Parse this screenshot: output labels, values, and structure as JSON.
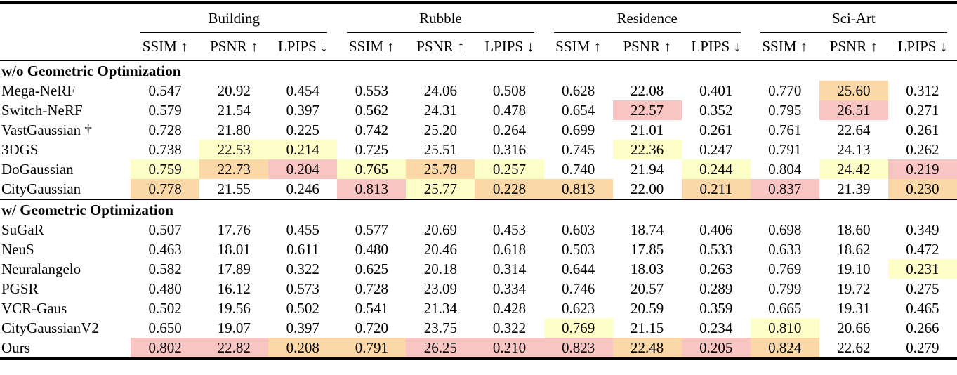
{
  "table": {
    "groups": [
      "Building",
      "Rubble",
      "Residence",
      "Sci-Art"
    ],
    "metrics": [
      "SSIM ↑",
      "PSNR ↑",
      "LPIPS ↓"
    ],
    "highlight_colors": {
      "1": "#f9c5c3",
      "2": "#fbd8a7",
      "3": "#fdfec8"
    },
    "sections": [
      {
        "title": "w/o Geometric Optimization",
        "rows": [
          {
            "method": "Mega-NeRF",
            "values": [
              "0.547",
              "20.92",
              "0.454",
              "0.553",
              "24.06",
              "0.508",
              "0.628",
              "22.08",
              "0.401",
              "0.770",
              "25.60",
              "0.312"
            ],
            "hl": [
              0,
              0,
              0,
              0,
              0,
              0,
              0,
              0,
              0,
              0,
              2,
              0
            ]
          },
          {
            "method": "Switch-NeRF",
            "values": [
              "0.579",
              "21.54",
              "0.397",
              "0.562",
              "24.31",
              "0.478",
              "0.654",
              "22.57",
              "0.352",
              "0.795",
              "26.51",
              "0.271"
            ],
            "hl": [
              0,
              0,
              0,
              0,
              0,
              0,
              0,
              1,
              0,
              0,
              1,
              0
            ]
          },
          {
            "method": "VastGaussian †",
            "values": [
              "0.728",
              "21.80",
              "0.225",
              "0.742",
              "25.20",
              "0.264",
              "0.699",
              "21.01",
              "0.261",
              "0.761",
              "22.64",
              "0.261"
            ],
            "hl": [
              0,
              0,
              0,
              0,
              0,
              0,
              0,
              0,
              0,
              0,
              0,
              0
            ]
          },
          {
            "method": "3DGS",
            "values": [
              "0.738",
              "22.53",
              "0.214",
              "0.725",
              "25.51",
              "0.316",
              "0.745",
              "22.36",
              "0.247",
              "0.791",
              "24.13",
              "0.262"
            ],
            "hl": [
              0,
              3,
              3,
              0,
              0,
              0,
              0,
              3,
              0,
              0,
              0,
              0
            ]
          },
          {
            "method": "DoGaussian",
            "values": [
              "0.759",
              "22.73",
              "0.204",
              "0.765",
              "25.78",
              "0.257",
              "0.740",
              "21.94",
              "0.244",
              "0.804",
              "24.42",
              "0.219"
            ],
            "hl": [
              3,
              2,
              1,
              3,
              2,
              3,
              0,
              0,
              3,
              0,
              3,
              1
            ]
          },
          {
            "method": "CityGaussian",
            "values": [
              "0.778",
              "21.55",
              "0.246",
              "0.813",
              "25.77",
              "0.228",
              "0.813",
              "22.00",
              "0.211",
              "0.837",
              "21.39",
              "0.230"
            ],
            "hl": [
              2,
              0,
              0,
              1,
              3,
              2,
              2,
              0,
              2,
              1,
              0,
              2
            ]
          }
        ]
      },
      {
        "title": "w/ Geometric Optimization",
        "rows": [
          {
            "method": "SuGaR",
            "values": [
              "0.507",
              "17.76",
              "0.455",
              "0.577",
              "20.69",
              "0.453",
              "0.603",
              "18.74",
              "0.406",
              "0.698",
              "18.60",
              "0.349"
            ],
            "hl": [
              0,
              0,
              0,
              0,
              0,
              0,
              0,
              0,
              0,
              0,
              0,
              0
            ]
          },
          {
            "method": "NeuS",
            "values": [
              "0.463",
              "18.01",
              "0.611",
              "0.480",
              "20.46",
              "0.618",
              "0.503",
              "17.85",
              "0.533",
              "0.633",
              "18.62",
              "0.472"
            ],
            "hl": [
              0,
              0,
              0,
              0,
              0,
              0,
              0,
              0,
              0,
              0,
              0,
              0
            ]
          },
          {
            "method": "Neuralangelo",
            "values": [
              "0.582",
              "17.89",
              "0.322",
              "0.625",
              "20.18",
              "0.314",
              "0.644",
              "18.03",
              "0.263",
              "0.769",
              "19.10",
              "0.231"
            ],
            "hl": [
              0,
              0,
              0,
              0,
              0,
              0,
              0,
              0,
              0,
              0,
              0,
              3
            ]
          },
          {
            "method": "PGSR",
            "values": [
              "0.480",
              "16.12",
              "0.573",
              "0.728",
              "23.09",
              "0.334",
              "0.746",
              "20.57",
              "0.289",
              "0.799",
              "19.72",
              "0.275"
            ],
            "hl": [
              0,
              0,
              0,
              0,
              0,
              0,
              0,
              0,
              0,
              0,
              0,
              0
            ]
          },
          {
            "method": "VCR-Gaus",
            "values": [
              "0.502",
              "19.56",
              "0.502",
              "0.541",
              "21.34",
              "0.428",
              "0.623",
              "20.59",
              "0.359",
              "0.665",
              "19.31",
              "0.465"
            ],
            "hl": [
              0,
              0,
              0,
              0,
              0,
              0,
              0,
              0,
              0,
              0,
              0,
              0
            ]
          },
          {
            "method": "CityGaussianV2",
            "values": [
              "0.650",
              "19.07",
              "0.397",
              "0.720",
              "23.75",
              "0.322",
              "0.769",
              "21.15",
              "0.234",
              "0.810",
              "20.66",
              "0.266"
            ],
            "hl": [
              0,
              0,
              0,
              0,
              0,
              0,
              3,
              0,
              0,
              3,
              0,
              0
            ]
          },
          {
            "method": "Ours",
            "values": [
              "0.802",
              "22.82",
              "0.208",
              "0.791",
              "26.25",
              "0.210",
              "0.823",
              "22.48",
              "0.205",
              "0.824",
              "22.62",
              "0.279"
            ],
            "hl": [
              1,
              1,
              2,
              2,
              1,
              1,
              1,
              2,
              1,
              2,
              0,
              0
            ]
          }
        ]
      }
    ]
  }
}
